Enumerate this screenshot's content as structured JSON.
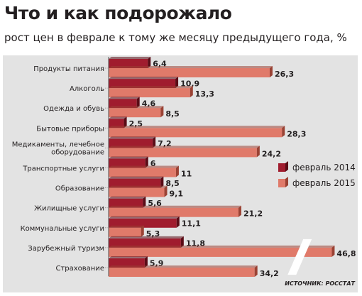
{
  "title": "Что и как подорожало",
  "subtitle": "рост цен в феврале к тому же месяцу предыдущего года, %",
  "source": "ИСТОЧНИК: РОССТАТ",
  "colors": {
    "feb2014": "#a01c2e",
    "feb2015": "#e07a6a",
    "feb2014_dark": "#5a0c16",
    "feb2015_dark": "#9a4234",
    "background": "#e3e3e3",
    "text": "#231f20"
  },
  "chart_data": {
    "type": "bar",
    "orientation": "horizontal",
    "categories": [
      [
        "Продукты питания"
      ],
      [
        "Алкоголь"
      ],
      [
        "Одежда и обувь"
      ],
      [
        "Бытовые приборы"
      ],
      [
        "Медикаменты, лечебное",
        "оборудование"
      ],
      [
        "Транспортные услуги"
      ],
      [
        "Образование"
      ],
      [
        "Жилищные услуги"
      ],
      [
        "Коммунальные услуги"
      ],
      [
        "Зарубежный туризм"
      ],
      [
        "Страхование"
      ]
    ],
    "series": [
      {
        "name": "февраль 2014",
        "values": [
          6.4,
          10.9,
          4.6,
          2.5,
          7.2,
          6,
          8.5,
          5.6,
          11.1,
          11.8,
          5.9
        ],
        "labels": [
          "6,4",
          "10,9",
          "4,6",
          "2,5",
          "7,2",
          "6",
          "8,5",
          "5,6",
          "11,1",
          "11,8",
          "5,9"
        ]
      },
      {
        "name": "февраль 2015",
        "values": [
          26.3,
          13.3,
          8.5,
          28.3,
          24.2,
          11,
          9.1,
          21.2,
          5.3,
          46.8,
          34.2
        ],
        "labels": [
          "26,3",
          "13,3",
          "8,5",
          "28,3",
          "24,2",
          "11",
          "9,1",
          "21,2",
          "5,3",
          "46,8",
          "34,2"
        ]
      }
    ],
    "axis_break": {
      "from": 29,
      "to": 44
    },
    "legend": "right",
    "grid": false
  }
}
